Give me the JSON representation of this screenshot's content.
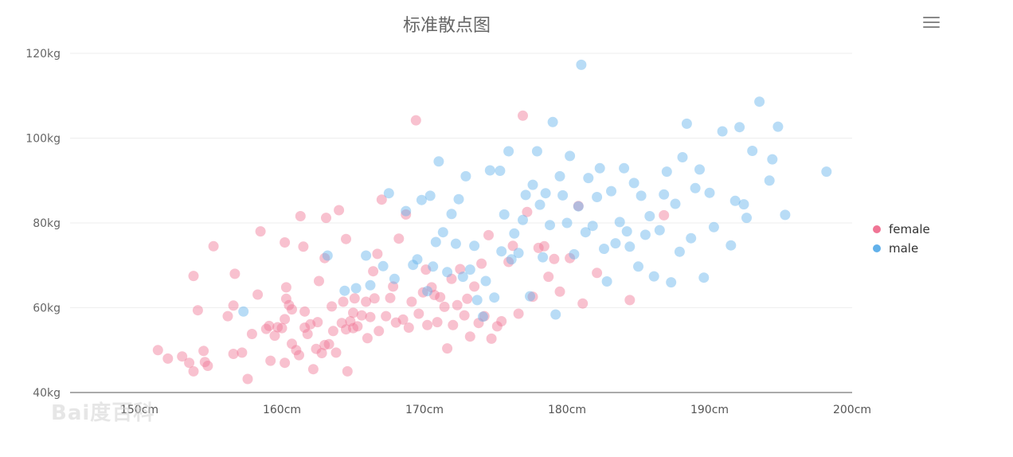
{
  "chart_data": {
    "type": "scatter",
    "title": "标准散点图",
    "xlim": [
      145,
      200
    ],
    "ylim": [
      40,
      120
    ],
    "x_ticks": [
      "150cm",
      "160cm",
      "170cm",
      "180cm",
      "190cm",
      "200cm"
    ],
    "y_ticks": [
      "40kg",
      "60kg",
      "80kg",
      "100kg",
      "120kg"
    ],
    "grid": true,
    "legend_position": "right",
    "series": [
      {
        "name": "female",
        "color": "#f07595",
        "points": [
          [
            151.3,
            50
          ],
          [
            152,
            48
          ],
          [
            153,
            48.5
          ],
          [
            153.8,
            45
          ],
          [
            153.5,
            47
          ],
          [
            154.5,
            49.8
          ],
          [
            154.6,
            47.2
          ],
          [
            154.8,
            46.3
          ],
          [
            155.2,
            74.5
          ],
          [
            153.8,
            67.5
          ],
          [
            154.1,
            59.4
          ],
          [
            156.2,
            58
          ],
          [
            156.6,
            60.5
          ],
          [
            156.6,
            49.1
          ],
          [
            156.7,
            68
          ],
          [
            157.2,
            49.4
          ],
          [
            157.6,
            43.2
          ],
          [
            157.9,
            53.8
          ],
          [
            158.3,
            63.1
          ],
          [
            158.5,
            78
          ],
          [
            158.9,
            55
          ],
          [
            159.1,
            55.7
          ],
          [
            159.2,
            47.5
          ],
          [
            159.5,
            53.4
          ],
          [
            159.7,
            55.4
          ],
          [
            160,
            55.2
          ],
          [
            160.2,
            47
          ],
          [
            160.2,
            75.4
          ],
          [
            160.2,
            57.3
          ],
          [
            160.3,
            64.8
          ],
          [
            160.3,
            62.1
          ],
          [
            160.5,
            60.6
          ],
          [
            160.7,
            59.6
          ],
          [
            160.7,
            51.5
          ],
          [
            161,
            50
          ],
          [
            161.2,
            48.8
          ],
          [
            161.3,
            81.6
          ],
          [
            161.5,
            74.4
          ],
          [
            161.6,
            55.3
          ],
          [
            161.8,
            53.8
          ],
          [
            161.6,
            59.1
          ],
          [
            162,
            56.1
          ],
          [
            162.2,
            45.5
          ],
          [
            162.4,
            50.3
          ],
          [
            162.5,
            56.6
          ],
          [
            162.6,
            66.3
          ],
          [
            162.8,
            49.3
          ],
          [
            163,
            71.7
          ],
          [
            163,
            51.2
          ],
          [
            163.1,
            81.2
          ],
          [
            163.3,
            51.4
          ],
          [
            163.5,
            60.3
          ],
          [
            163.6,
            54.5
          ],
          [
            163.8,
            49.4
          ],
          [
            164,
            83
          ],
          [
            164.2,
            56.4
          ],
          [
            164.3,
            61.4
          ],
          [
            164.5,
            76.2
          ],
          [
            164.5,
            54.9
          ],
          [
            164.6,
            45
          ],
          [
            164.8,
            56.8
          ],
          [
            165,
            58.8
          ],
          [
            165,
            55.2
          ],
          [
            165.1,
            62.2
          ],
          [
            165.3,
            55.6
          ],
          [
            165.6,
            58.2
          ],
          [
            165.9,
            61.4
          ],
          [
            166,
            52.8
          ],
          [
            166.2,
            57.8
          ],
          [
            166.4,
            68.6
          ],
          [
            166.5,
            62.2
          ],
          [
            166.7,
            72.7
          ],
          [
            166.8,
            54.5
          ],
          [
            167,
            85.5
          ],
          [
            167.3,
            58
          ],
          [
            167.6,
            62.3
          ],
          [
            167.8,
            65
          ],
          [
            168,
            56.5
          ],
          [
            168.2,
            76.3
          ],
          [
            168.5,
            57.2
          ],
          [
            168.7,
            82
          ],
          [
            168.9,
            55.3
          ],
          [
            169.1,
            61.4
          ],
          [
            169.4,
            104.2
          ],
          [
            169.6,
            58.6
          ],
          [
            169.9,
            63.6
          ],
          [
            170.1,
            69
          ],
          [
            170.2,
            55.9
          ],
          [
            170.5,
            64.8
          ],
          [
            170.7,
            63
          ],
          [
            170.9,
            56.6
          ],
          [
            171.1,
            62.5
          ],
          [
            171.4,
            60.2
          ],
          [
            171.6,
            50.4
          ],
          [
            171.9,
            66.8
          ],
          [
            172,
            55.9
          ],
          [
            172.3,
            60.6
          ],
          [
            172.5,
            69.1
          ],
          [
            172.8,
            58.2
          ],
          [
            173,
            62.1
          ],
          [
            173.2,
            53.2
          ],
          [
            173.5,
            65
          ],
          [
            173.8,
            56.4
          ],
          [
            174,
            70.4
          ],
          [
            174.2,
            58
          ],
          [
            174.5,
            77.1
          ],
          [
            174.7,
            52.7
          ],
          [
            175.1,
            55.6
          ],
          [
            175.4,
            56.8
          ],
          [
            175.9,
            70.8
          ],
          [
            176.2,
            74.6
          ],
          [
            176.6,
            58.6
          ],
          [
            176.9,
            105.3
          ],
          [
            177.2,
            82.6
          ],
          [
            177.6,
            62.6
          ],
          [
            178,
            74.1
          ],
          [
            178.4,
            74.5
          ],
          [
            178.7,
            67.3
          ],
          [
            179.1,
            71.5
          ],
          [
            179.5,
            63.8
          ],
          [
            180.2,
            71.7
          ],
          [
            180.8,
            84
          ],
          [
            181.1,
            61
          ],
          [
            182.1,
            68.2
          ],
          [
            184.4,
            61.8
          ],
          [
            186.8,
            81.8
          ]
        ]
      },
      {
        "name": "male",
        "color": "#62b1ea",
        "points": [
          [
            157.3,
            59.1
          ],
          [
            163.2,
            72.3
          ],
          [
            164.4,
            64
          ],
          [
            165.2,
            64.6
          ],
          [
            165.9,
            72.3
          ],
          [
            166.2,
            65.3
          ],
          [
            167.1,
            69.8
          ],
          [
            167.5,
            87
          ],
          [
            167.9,
            66.8
          ],
          [
            168.7,
            82.8
          ],
          [
            169.2,
            70.1
          ],
          [
            169.5,
            71.4
          ],
          [
            169.8,
            85.4
          ],
          [
            170.2,
            63.9
          ],
          [
            170.4,
            86.4
          ],
          [
            170.6,
            69.7
          ],
          [
            170.8,
            75.5
          ],
          [
            171,
            94.5
          ],
          [
            171.3,
            77.8
          ],
          [
            171.6,
            68.4
          ],
          [
            171.9,
            82.1
          ],
          [
            172.2,
            75.1
          ],
          [
            172.4,
            85.6
          ],
          [
            172.7,
            67.3
          ],
          [
            172.9,
            91
          ],
          [
            173.2,
            69
          ],
          [
            173.5,
            74.6
          ],
          [
            173.7,
            61.8
          ],
          [
            174.1,
            57.9
          ],
          [
            174.3,
            66.3
          ],
          [
            174.6,
            92.4
          ],
          [
            174.9,
            62.4
          ],
          [
            175.3,
            92.3
          ],
          [
            175.4,
            73.3
          ],
          [
            175.6,
            82
          ],
          [
            175.9,
            96.9
          ],
          [
            176.1,
            71.4
          ],
          [
            176.3,
            77.5
          ],
          [
            176.6,
            72.9
          ],
          [
            176.9,
            80.7
          ],
          [
            177.1,
            86.6
          ],
          [
            177.4,
            62.7
          ],
          [
            177.6,
            89
          ],
          [
            177.9,
            96.9
          ],
          [
            178.1,
            84.3
          ],
          [
            178.3,
            71.9
          ],
          [
            178.5,
            87
          ],
          [
            178.8,
            79.5
          ],
          [
            179,
            103.8
          ],
          [
            179.2,
            58.4
          ],
          [
            179.5,
            91
          ],
          [
            179.7,
            86.5
          ],
          [
            180,
            80
          ],
          [
            180.2,
            95.8
          ],
          [
            180.5,
            72.6
          ],
          [
            180.8,
            83.9
          ],
          [
            181,
            117.3
          ],
          [
            181.3,
            77.8
          ],
          [
            181.5,
            90.6
          ],
          [
            181.8,
            79.3
          ],
          [
            182.1,
            86.1
          ],
          [
            182.3,
            92.9
          ],
          [
            182.6,
            73.9
          ],
          [
            182.8,
            66.2
          ],
          [
            183.1,
            87.5
          ],
          [
            183.4,
            75.2
          ],
          [
            183.7,
            80.2
          ],
          [
            184,
            92.9
          ],
          [
            184.2,
            78
          ],
          [
            184.4,
            74.4
          ],
          [
            184.7,
            89.4
          ],
          [
            185,
            69.7
          ],
          [
            185.2,
            86.4
          ],
          [
            185.5,
            77.2
          ],
          [
            185.8,
            81.6
          ],
          [
            186.1,
            67.4
          ],
          [
            186.5,
            78.3
          ],
          [
            186.8,
            86.7
          ],
          [
            187,
            92.1
          ],
          [
            187.3,
            66
          ],
          [
            187.6,
            84.5
          ],
          [
            187.9,
            73.2
          ],
          [
            188.1,
            95.5
          ],
          [
            188.4,
            103.4
          ],
          [
            188.7,
            76.4
          ],
          [
            189,
            88.2
          ],
          [
            189.3,
            92.6
          ],
          [
            189.6,
            67.1
          ],
          [
            190,
            87.1
          ],
          [
            190.3,
            79
          ],
          [
            190.9,
            101.6
          ],
          [
            191.5,
            74.7
          ],
          [
            191.8,
            85.2
          ],
          [
            192.1,
            102.6
          ],
          [
            192.4,
            84.4
          ],
          [
            192.6,
            81.2
          ],
          [
            193,
            97
          ],
          [
            193.5,
            108.6
          ],
          [
            194.2,
            90
          ],
          [
            194.4,
            95
          ],
          [
            194.8,
            102.7
          ],
          [
            195.3,
            81.9
          ],
          [
            198.2,
            92.1
          ]
        ]
      }
    ]
  },
  "watermark": "Bai度百科"
}
